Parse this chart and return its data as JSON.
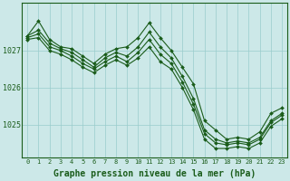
{
  "background_color": "#cce8e8",
  "grid_color": "#99cccc",
  "line_color": "#1a5c1a",
  "marker_color": "#1a5c1a",
  "xlabel": "Graphe pression niveau de la mer (hPa)",
  "xlabel_fontsize": 7,
  "yticks": [
    1025,
    1026,
    1027
  ],
  "xticks": [
    0,
    1,
    2,
    3,
    4,
    5,
    6,
    7,
    8,
    9,
    10,
    11,
    12,
    13,
    14,
    15,
    16,
    17,
    18,
    19,
    20,
    21,
    22,
    23
  ],
  "xlim": [
    -0.5,
    23.5
  ],
  "ylim": [
    1024.1,
    1028.3
  ],
  "series": [
    [
      1027.4,
      1027.8,
      1027.3,
      1027.1,
      1027.05,
      1026.85,
      1026.65,
      1026.9,
      1027.05,
      1027.1,
      1027.35,
      1027.75,
      1027.35,
      1027.0,
      1026.55,
      1026.1,
      1025.1,
      1024.85,
      1024.6,
      1024.65,
      1024.6,
      1024.8,
      1025.3,
      1025.45
    ],
    [
      1027.4,
      1027.55,
      1027.2,
      1027.05,
      1026.95,
      1026.75,
      1026.55,
      1026.8,
      1026.95,
      1026.85,
      1027.1,
      1027.5,
      1027.1,
      1026.8,
      1026.3,
      1025.7,
      1024.85,
      1024.6,
      1024.5,
      1024.55,
      1024.5,
      1024.65,
      1025.1,
      1025.3
    ],
    [
      1027.35,
      1027.45,
      1027.1,
      1027.0,
      1026.85,
      1026.65,
      1026.5,
      1026.7,
      1026.85,
      1026.7,
      1026.95,
      1027.3,
      1026.9,
      1026.65,
      1026.15,
      1025.55,
      1024.75,
      1024.5,
      1024.45,
      1024.5,
      1024.45,
      1024.6,
      1025.05,
      1025.25
    ],
    [
      1027.3,
      1027.35,
      1027.0,
      1026.9,
      1026.75,
      1026.55,
      1026.4,
      1026.6,
      1026.75,
      1026.6,
      1026.8,
      1027.1,
      1026.7,
      1026.5,
      1026.0,
      1025.4,
      1024.6,
      1024.35,
      1024.35,
      1024.4,
      1024.35,
      1024.5,
      1024.95,
      1025.15
    ]
  ]
}
